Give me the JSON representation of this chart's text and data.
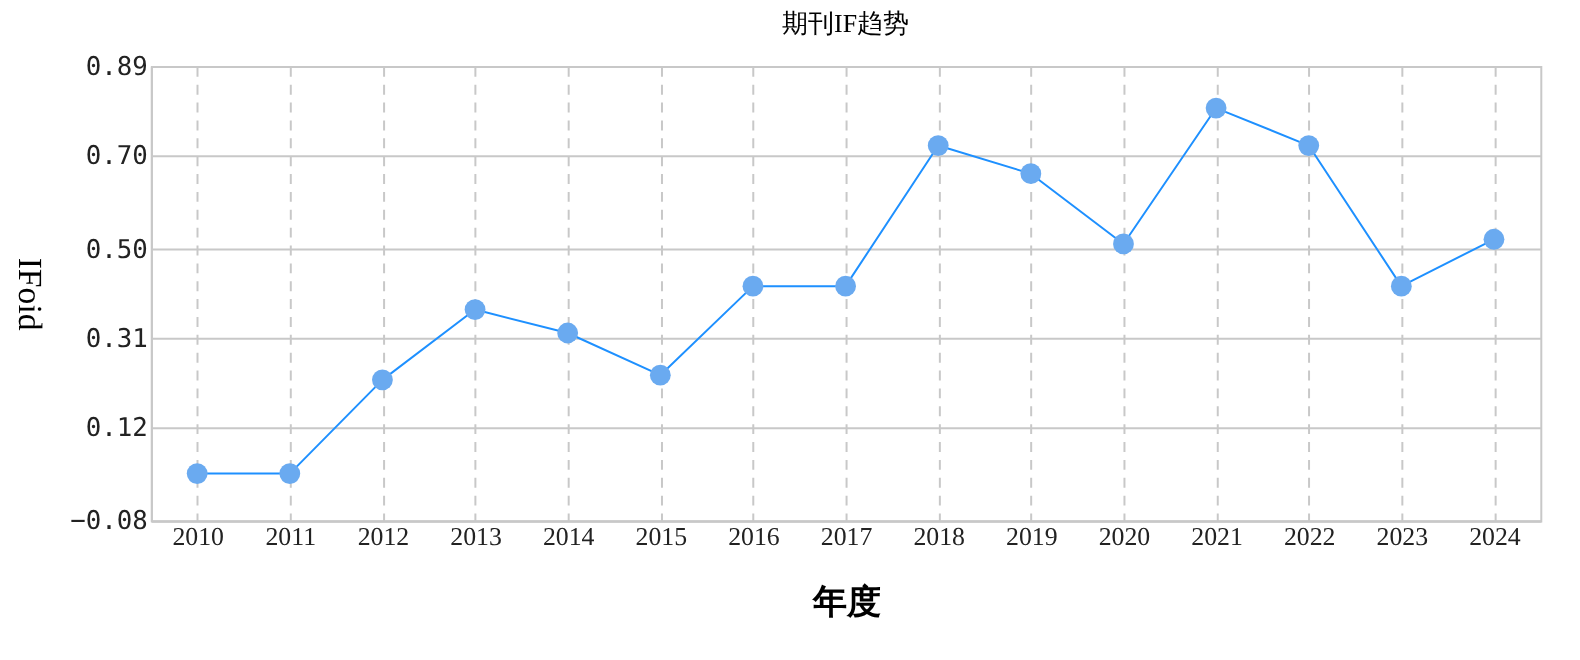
{
  "chart_data": {
    "type": "line",
    "title": "期刊IF趋势",
    "xlabel": "年度",
    "ylabel": "IFoid",
    "categories": [
      "2010",
      "2011",
      "2012",
      "2013",
      "2014",
      "2015",
      "2016",
      "2017",
      "2018",
      "2019",
      "2020",
      "2021",
      "2022",
      "2023",
      "2024"
    ],
    "series": [
      {
        "color": "#1e90ff",
        "values": [
          0.02,
          0.02,
          0.22,
          0.37,
          0.32,
          0.23,
          0.42,
          0.42,
          0.72,
          0.66,
          0.51,
          0.8,
          0.72,
          0.42,
          0.52
        ]
      }
    ],
    "ylim": [
      -0.08,
      0.89
    ],
    "yticks": [
      -0.08,
      0.12,
      0.31,
      {
        "value": 0.5,
        "label": "0.50"
      },
      {
        "value": 0.7,
        "label": "0.70"
      },
      0.89
    ],
    "grid": true,
    "marker": "circle",
    "line_style": "solid"
  }
}
